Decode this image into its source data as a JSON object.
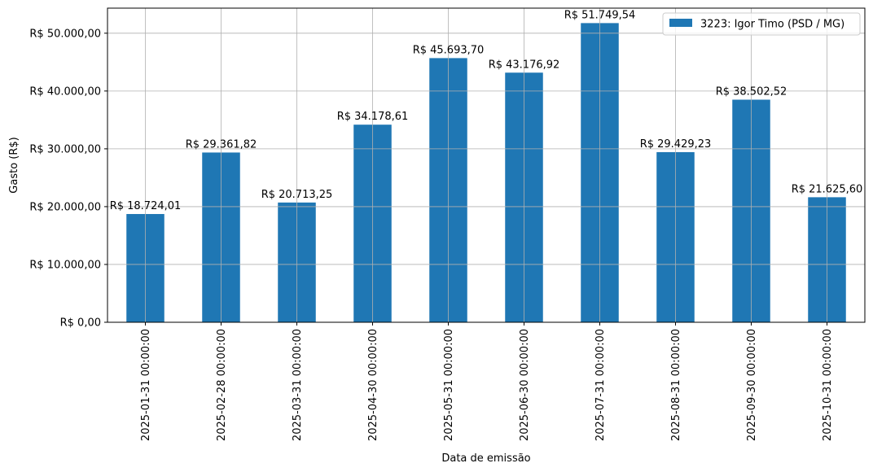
{
  "chart_data": {
    "type": "bar",
    "xlabel": "Data de emissão",
    "ylabel": "Gasto (R$)",
    "categories": [
      "2025-01-31 00:00:00",
      "2025-02-28 00:00:00",
      "2025-03-31 00:00:00",
      "2025-04-30 00:00:00",
      "2025-05-31 00:00:00",
      "2025-06-30 00:00:00",
      "2025-07-31 00:00:00",
      "2025-08-31 00:00:00",
      "2025-09-30 00:00:00",
      "2025-10-31 00:00:00"
    ],
    "series": [
      {
        "name": "3223: Igor Timo (PSD / MG)",
        "values": [
          18724.01,
          29361.82,
          20713.25,
          34178.61,
          45693.7,
          43176.92,
          51749.54,
          29429.23,
          38502.52,
          21625.6
        ],
        "color": "#1f77b4"
      }
    ],
    "data_labels": [
      "R$ 18.724,01",
      "R$ 29.361,82",
      "R$ 20.713,25",
      "R$ 34.178,61",
      "R$ 45.693,70",
      "R$ 43.176,92",
      "R$ 51.749,54",
      "R$ 29.429,23",
      "R$ 38.502,52",
      "R$ 21.625,60"
    ],
    "yticks": [
      0,
      10000,
      20000,
      30000,
      40000,
      50000
    ],
    "ytick_labels": [
      "R$ 0,00",
      "R$ 10.000,00",
      "R$ 20.000,00",
      "R$ 30.000,00",
      "R$ 40.000,00",
      "R$ 50.000,00"
    ],
    "ylim": [
      0,
      54337.02
    ],
    "grid": true,
    "legend_position": "top-right"
  }
}
